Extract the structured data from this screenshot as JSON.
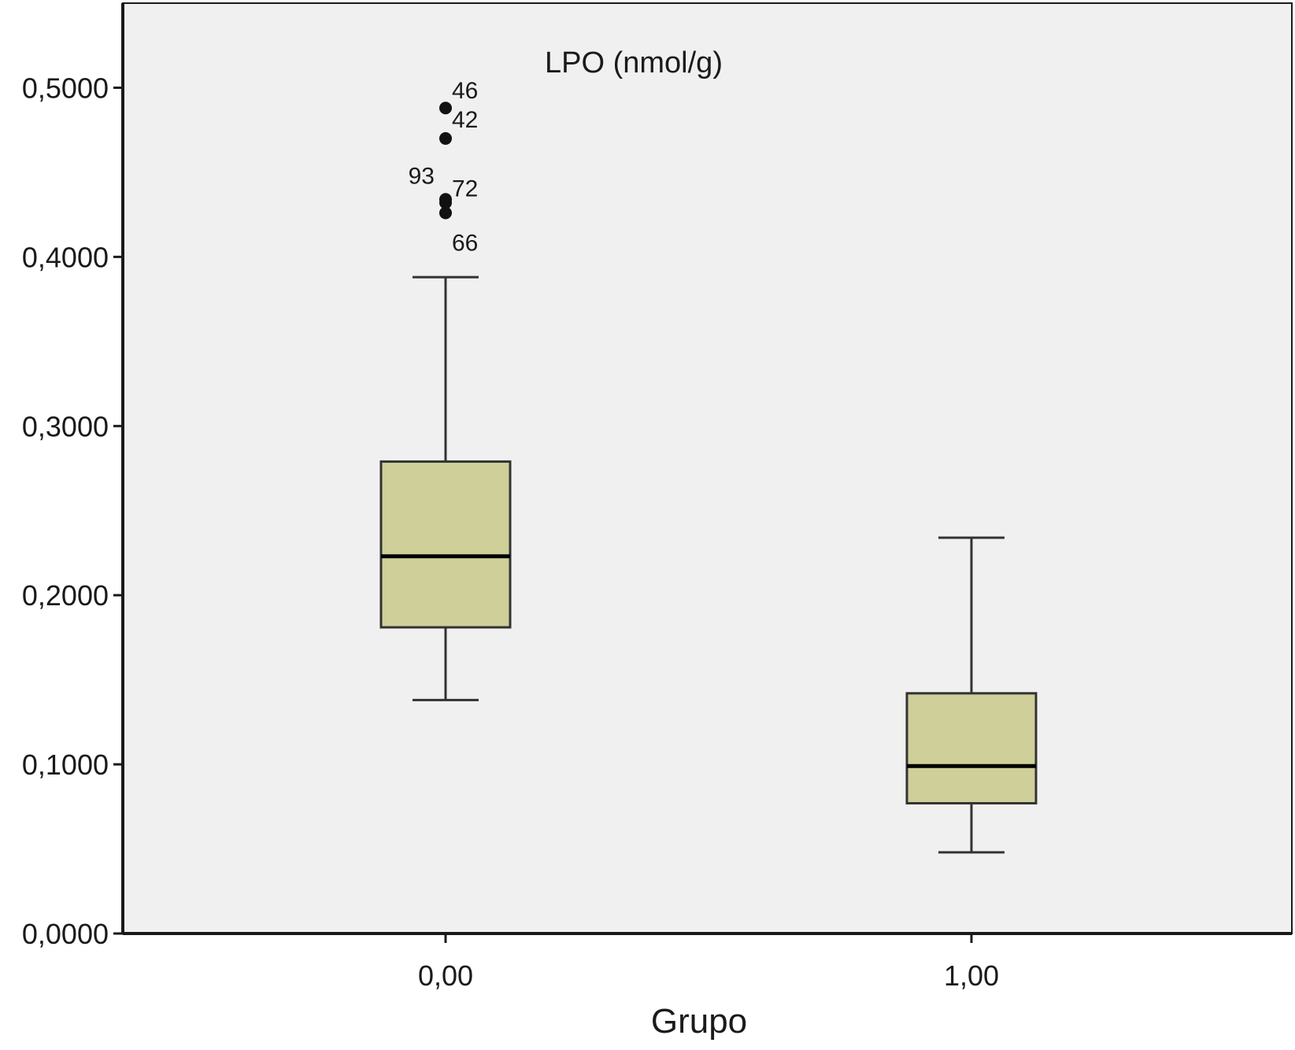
{
  "chart_data": {
    "type": "boxplot",
    "title": "LPO (nmol/g)",
    "xlabel": "Grupo",
    "ylabel": "",
    "ylim": [
      0,
      0.55
    ],
    "yticks": [
      0,
      0.1,
      0.2,
      0.3,
      0.4,
      0.5
    ],
    "ytick_labels": [
      "0,0000",
      "0,1000",
      "0,2000",
      "0,3000",
      "0,4000",
      "0,5000"
    ],
    "categories": [
      "0,00",
      "1,00"
    ],
    "grid": false,
    "colors": {
      "box_fill": "#cfcf9a",
      "plot_bg": "#f0f0f0",
      "axis": "#1a1a1a"
    },
    "boxes": [
      {
        "category": "0,00",
        "whisker_low": 0.138,
        "q1": 0.181,
        "median": 0.223,
        "q3": 0.279,
        "whisker_high": 0.388,
        "outliers": [
          {
            "value": 0.488,
            "label": "46"
          },
          {
            "value": 0.47,
            "label": "42"
          },
          {
            "value": 0.434,
            "label": "93"
          },
          {
            "value": 0.432,
            "label": "72"
          },
          {
            "value": 0.426,
            "label": "66"
          }
        ]
      },
      {
        "category": "1,00",
        "whisker_low": 0.048,
        "q1": 0.077,
        "median": 0.099,
        "q3": 0.142,
        "whisker_high": 0.234,
        "outliers": []
      }
    ]
  }
}
